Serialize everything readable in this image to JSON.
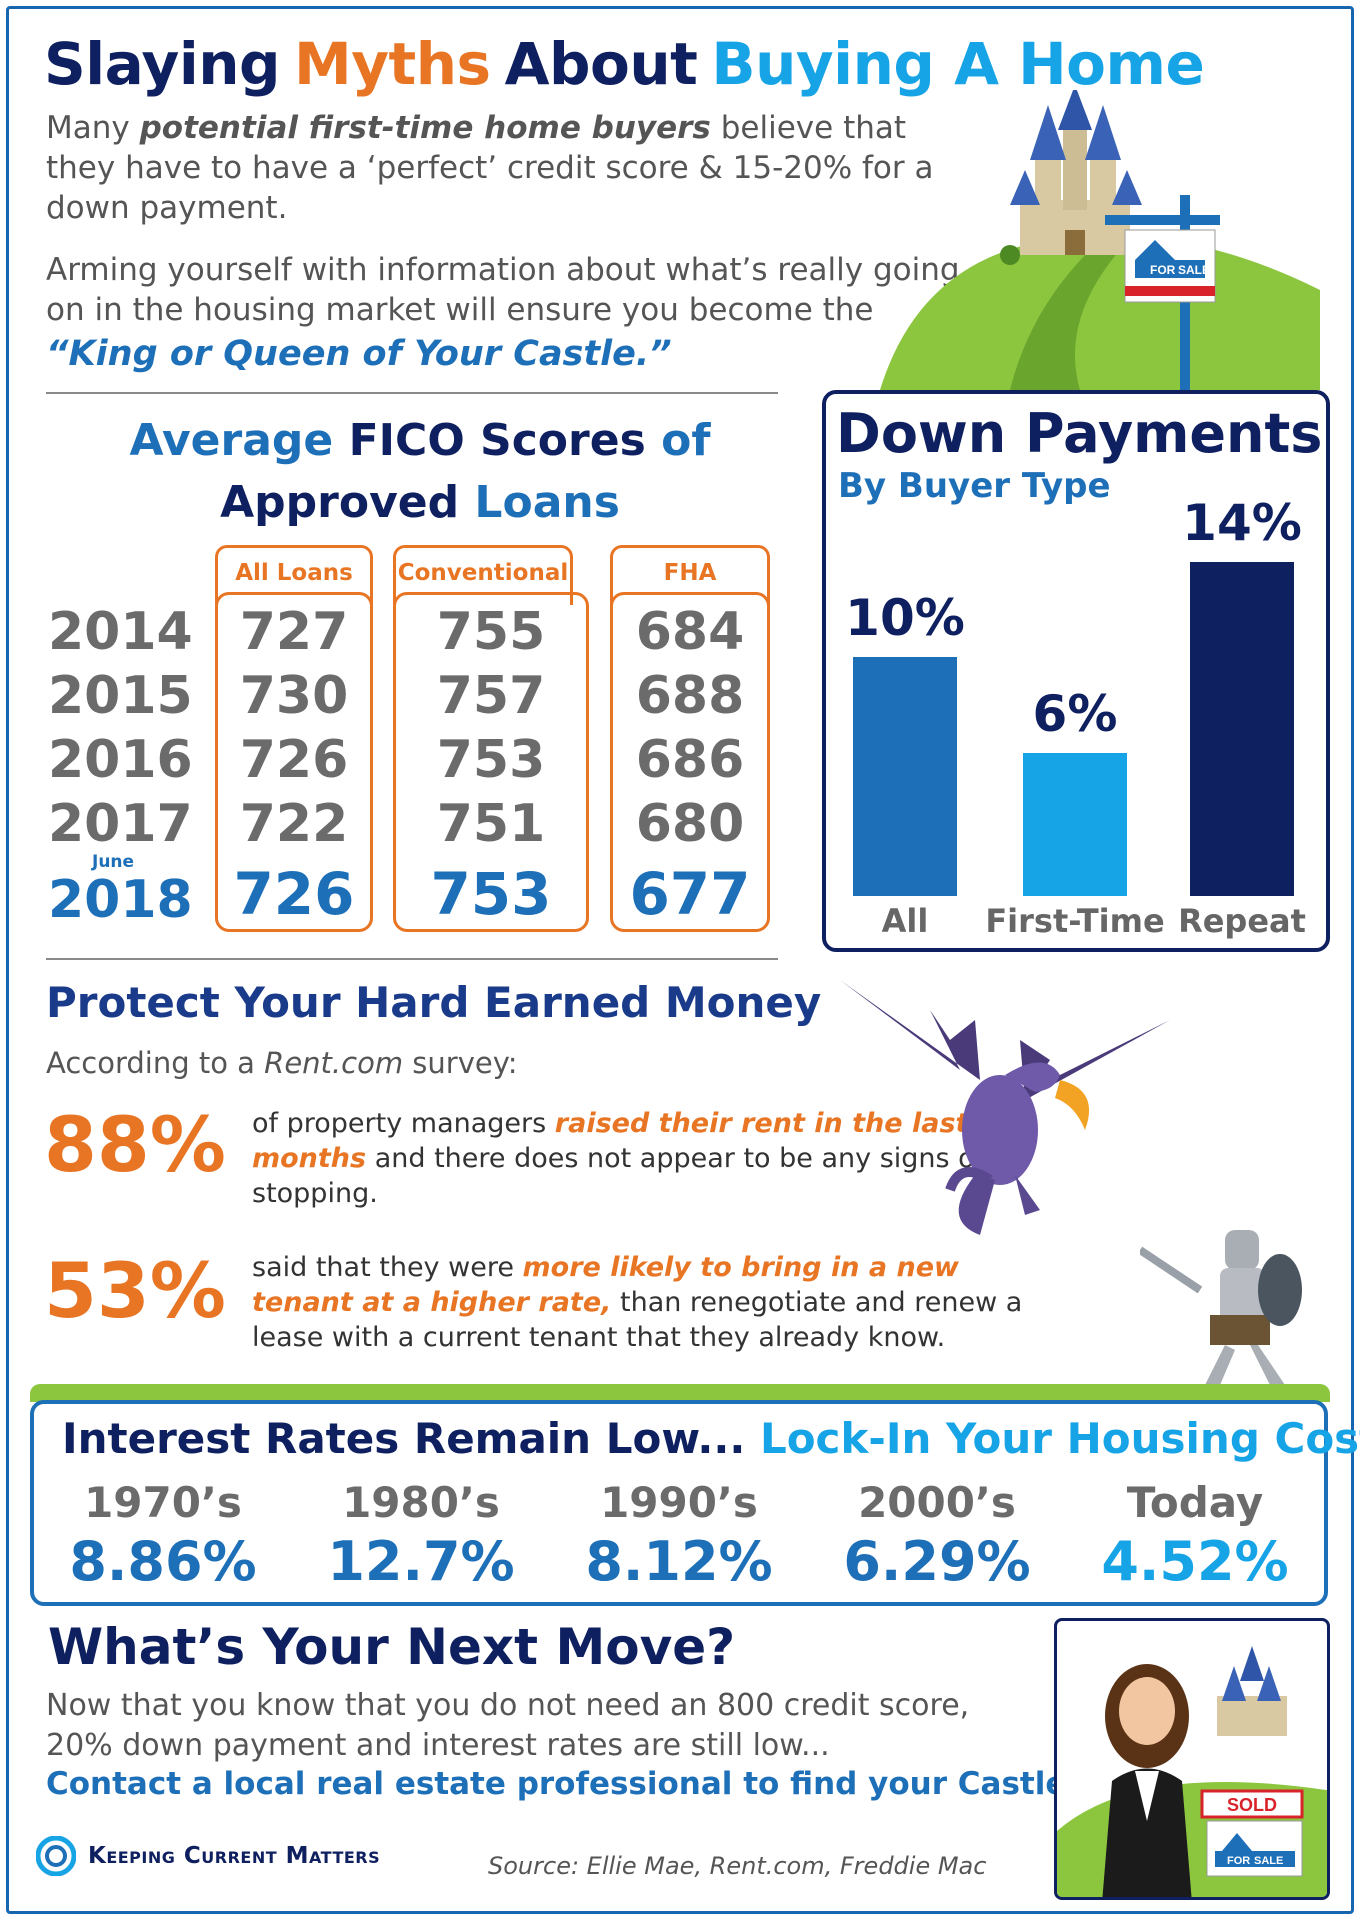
{
  "header": {
    "title_words": [
      "Slaying",
      "Myths",
      "About",
      "Buying A Home"
    ],
    "intro1_pre": "Many ",
    "intro1_bold": "potential first-time home buyers",
    "intro1_post": " believe that they have to have a ‘perfect’ credit score & 15-20% for a down payment.",
    "intro2": "Arming yourself with information about what’s really going on in the housing market will ensure you become the",
    "king": "“King or Queen of Your Castle.”"
  },
  "for_sale": {
    "for": "FOR",
    "sale": "SALE"
  },
  "fico": {
    "title_line1": [
      "Average",
      "FICO Scores",
      "of"
    ],
    "title_line2": [
      "Approved",
      "Loans"
    ],
    "columns": [
      "All Loans",
      "Conventional",
      "FHA"
    ],
    "june_label": "June",
    "rows": [
      {
        "year": "2014",
        "values": [
          "727",
          "755",
          "684"
        ]
      },
      {
        "year": "2015",
        "values": [
          "730",
          "757",
          "688"
        ]
      },
      {
        "year": "2016",
        "values": [
          "726",
          "753",
          "686"
        ]
      },
      {
        "year": "2017",
        "values": [
          "722",
          "751",
          "680"
        ]
      },
      {
        "year": "2018",
        "values": [
          "726",
          "753",
          "677"
        ]
      }
    ]
  },
  "down_payments": {
    "title": "Down Payments",
    "subtitle": "By Buyer Type"
  },
  "protect": {
    "title": "Protect Your Hard Earned Money",
    "according_pre": "According to a ",
    "according_site": "Rent.com",
    "according_post": " survey:",
    "stats": [
      {
        "pct": "88%",
        "pre": "of property managers ",
        "em": "raised their rent in the last 12 months",
        "post": " and there does not appear to be any signs of stopping."
      },
      {
        "pct": "53%",
        "pre": "said that they were ",
        "em": "more likely to bring in a new tenant at a higher rate,",
        "post": " than renegotiate and renew a lease with a current tenant that they already know."
      }
    ]
  },
  "interest": {
    "title_a": "Interest Rates Remain Low...",
    "title_b": "Lock-In Your Housing Cost",
    "items": [
      {
        "decade": "1970’s",
        "rate": "8.86%"
      },
      {
        "decade": "1980’s",
        "rate": "12.7%"
      },
      {
        "decade": "1990’s",
        "rate": "8.12%"
      },
      {
        "decade": "2000’s",
        "rate": "6.29%"
      },
      {
        "decade": "Today",
        "rate": "4.52%"
      }
    ]
  },
  "next": {
    "title": "What’s Your Next Move?",
    "text": "Now that you know that you do not need an 800 credit score, 20% down payment and interest rates are still low...",
    "contact": "Contact a local real estate professional to find your Castle!",
    "sold": "SOLD"
  },
  "footer": {
    "logo": "Keeping Current Matters",
    "source": "Source: Ellie Mae, Rent.com, Freddie Mac"
  },
  "colors": {
    "navy": "#0f2060",
    "blue": "#1d6fb8",
    "sky": "#17a4e6",
    "orange": "#e87524",
    "green": "#8cc63f"
  },
  "chart_data": {
    "type": "bar",
    "title": "Down Payments",
    "subtitle": "By Buyer Type",
    "categories": [
      "All",
      "First-Time",
      "Repeat"
    ],
    "values": [
      10,
      6,
      14
    ],
    "value_labels": [
      "10%",
      "6%",
      "14%"
    ],
    "bar_colors": [
      "#1d6fb8",
      "#17a4e6",
      "#0f2060"
    ],
    "ylim": [
      0,
      14
    ],
    "grid": false,
    "legend": "none"
  }
}
